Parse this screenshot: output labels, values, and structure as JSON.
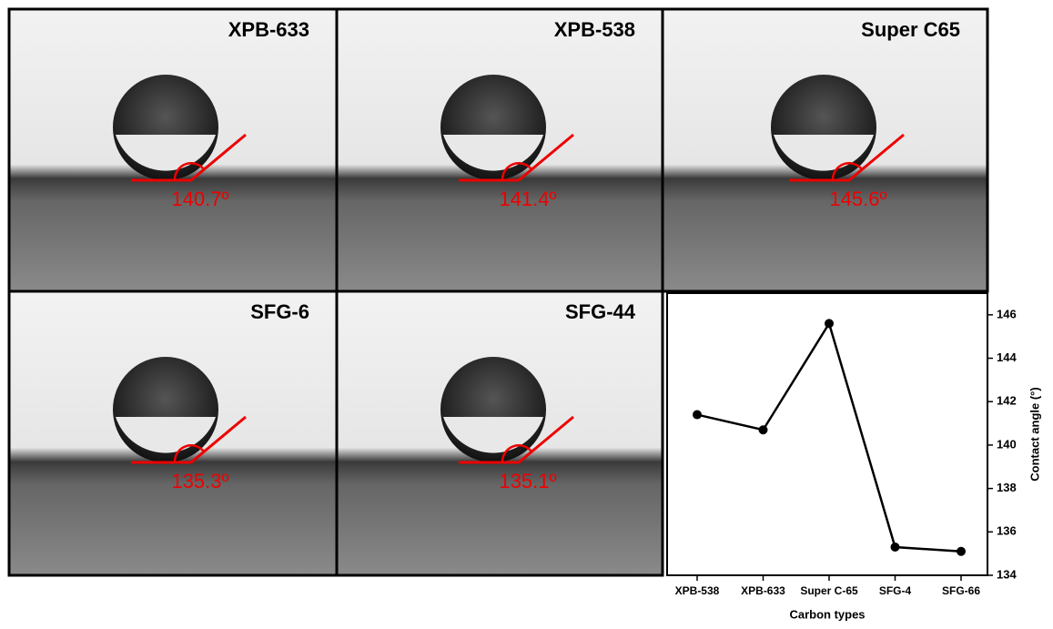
{
  "panels": [
    {
      "label": "XPB-633",
      "angle": "140.7º"
    },
    {
      "label": "XPB-538",
      "angle": "141.4º"
    },
    {
      "label": "Super C65",
      "angle": "145.6º"
    },
    {
      "label": "SFG-6",
      "angle": "135.3º"
    },
    {
      "label": "SFG-44",
      "angle": "135.1º"
    }
  ],
  "chart_data": {
    "type": "line",
    "x_label": "Carbon types",
    "y_label": "Contact angle (°)",
    "categories": [
      "XPB-538",
      "XPB-633",
      "Super C-65",
      "SFG-4",
      "SFG-66"
    ],
    "series": [
      {
        "color": "#000000",
        "values": [
          141.4,
          140.7,
          145.6,
          135.3,
          135.1
        ]
      }
    ],
    "ylim": [
      134,
      147
    ],
    "yticks": [
      134,
      136,
      138,
      140,
      142,
      144,
      146
    ]
  }
}
